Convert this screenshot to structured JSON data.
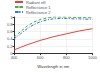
{
  "chart_data": {
    "type": "line",
    "x_label": "Wavelength in nm",
    "x": [
      400,
      450,
      500,
      550,
      600,
      650,
      700,
      750,
      800,
      850,
      900,
      950,
      1000
    ],
    "series": [
      {
        "name": "Radiant eff.",
        "color": "#e8413c",
        "line_style": "solid",
        "values": [
          0.1,
          0.17,
          0.24,
          0.3,
          0.36,
          0.41,
          0.46,
          0.5,
          0.54,
          0.58,
          0.62,
          0.65,
          0.68
        ]
      },
      {
        "name": "Reflectance 1",
        "color": "#3cb44b",
        "line_style": "dashed",
        "values": [
          0.45,
          0.6,
          0.75,
          0.86,
          0.93,
          0.97,
          1.0,
          1.0,
          1.0,
          0.99,
          0.99,
          0.98,
          0.98
        ]
      },
      {
        "name": "Reflectance 2",
        "color": "#3a6fd8",
        "line_style": "dashdot",
        "values": [
          0.4,
          0.54,
          0.68,
          0.79,
          0.87,
          0.92,
          0.95,
          0.96,
          0.96,
          0.95,
          0.95,
          0.94,
          0.94
        ]
      }
    ],
    "xlim": [
      400,
      1000
    ],
    "xticks": [
      400,
      600,
      800,
      1000
    ],
    "ylim": [
      0,
      1
    ],
    "yticks": [
      0,
      0.2,
      0.4,
      0.6,
      0.8,
      1
    ],
    "grid": true,
    "legend": "top-left"
  }
}
